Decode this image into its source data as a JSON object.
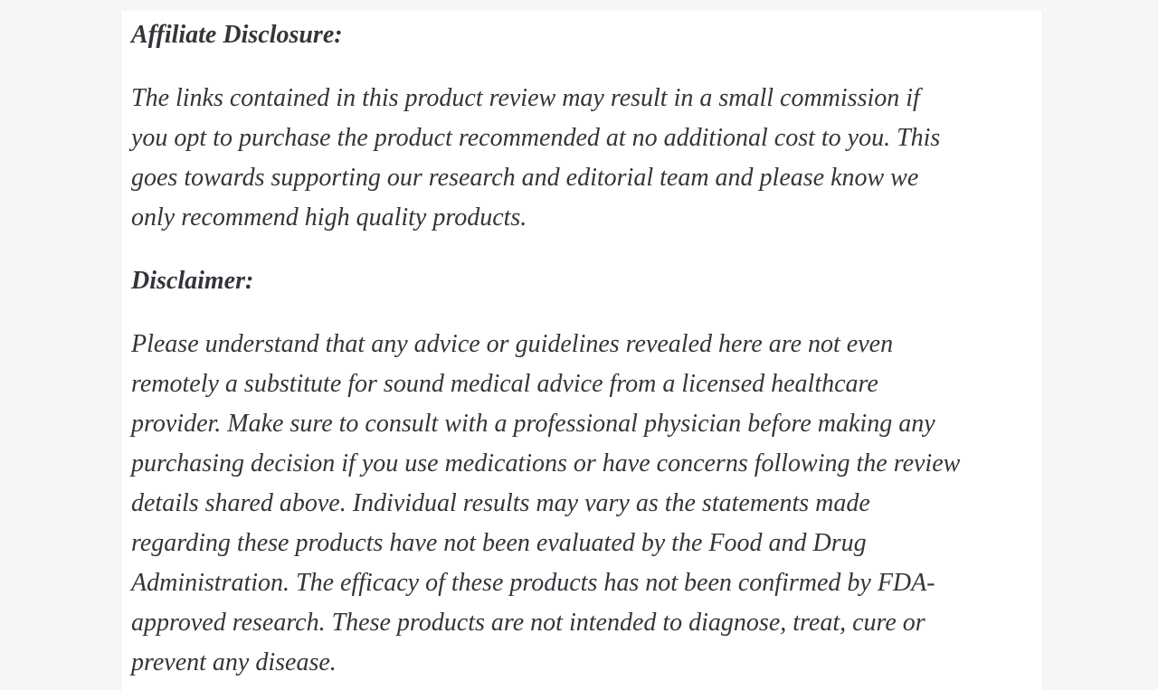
{
  "page": {
    "background_color": "#f6f6f7",
    "card_background_color": "#ffffff",
    "text_color": "#32353a"
  },
  "article": {
    "affiliate": {
      "heading": "Affiliate Disclosure:",
      "lines": [
        "The links contained in this product review may result in a small commission if",
        "you opt to purchase the product recommended at no additional cost to you. This",
        "goes towards supporting our research and editorial team and please know we",
        "only recommend high quality products."
      ]
    },
    "disclaimer": {
      "heading": "Disclaimer:",
      "lines": [
        "Please understand that any advice or guidelines revealed here are not even",
        "remotely a substitute for sound medical advice from a licensed healthcare",
        "provider. Make sure to consult with a professional physician before making any",
        "purchasing decision if you use medications or have concerns following the review",
        "details shared above. Individual results may vary as the statements made",
        "regarding these products have not been evaluated by the Food and Drug",
        "Administration. The efficacy of these products has not been confirmed by FDA-",
        "approved research. These products are not intended to diagnose, treat, cure or",
        "prevent any disease."
      ]
    }
  }
}
